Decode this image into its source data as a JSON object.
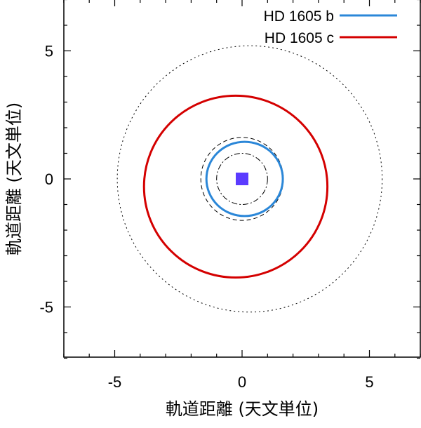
{
  "chart_data": {
    "type": "scatter",
    "title": "",
    "xlabel": "軌道距離 (天文単位)",
    "ylabel": "軌道距離 (天文単位)",
    "xlim": [
      -7,
      7
    ],
    "ylim": [
      -7,
      7
    ],
    "xticks": [
      -5,
      0,
      5
    ],
    "yticks": [
      -5,
      0,
      5
    ],
    "grid": false,
    "legend_position": "top-right",
    "series": [
      {
        "name": "HD 1605 b",
        "color": "#2b87d8",
        "kind": "orbit",
        "center": [
          0.1,
          0.0
        ],
        "semi_axes": [
          1.5,
          1.45
        ]
      },
      {
        "name": "HD 1605 c",
        "color": "#d40000",
        "kind": "orbit",
        "center": [
          -0.25,
          -0.3
        ],
        "semi_axes": [
          3.6,
          3.55
        ]
      }
    ],
    "reference_circles": [
      {
        "center": [
          0.3,
          0.0
        ],
        "radius": 5.2,
        "style": "dotted"
      },
      {
        "center": [
          0.0,
          0.0
        ],
        "radius": 1.62,
        "style": "dashed"
      },
      {
        "center": [
          0.0,
          0.0
        ],
        "radius": 1.0,
        "style": "dash-dot"
      }
    ],
    "star": {
      "x": 0,
      "y": 0,
      "color": "#5b3bff",
      "marker": "square"
    }
  }
}
